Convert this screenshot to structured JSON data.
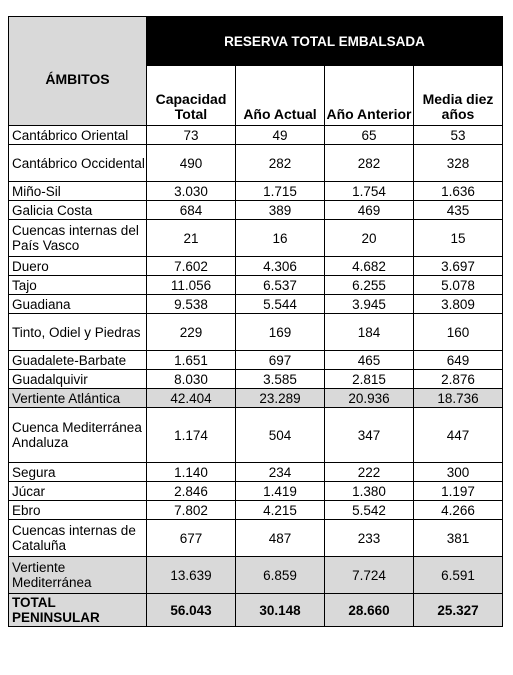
{
  "header": {
    "ambitos": "ÁMBITOS",
    "reserva": "RESERVA TOTAL EMBALSADA",
    "columns": [
      "Capacidad Total",
      "Año Actual",
      "Año Anterior",
      "Media diez años"
    ]
  },
  "rows": [
    {
      "name": "Cantábrico Oriental",
      "values": [
        "73",
        "49",
        "65",
        "53"
      ]
    },
    {
      "name": "Cantábrico Occidental",
      "values": [
        "490",
        "282",
        "282",
        "328"
      ]
    },
    {
      "name": "Miño-Sil",
      "values": [
        "3.030",
        "1.715",
        "1.754",
        "1.636"
      ]
    },
    {
      "name": "Galicia Costa",
      "values": [
        "684",
        "389",
        "469",
        "435"
      ]
    },
    {
      "name": "Cuencas internas del País Vasco",
      "values": [
        "21",
        "16",
        "20",
        "15"
      ]
    },
    {
      "name": "Duero",
      "values": [
        "7.602",
        "4.306",
        "4.682",
        "3.697"
      ]
    },
    {
      "name": "Tajo",
      "values": [
        "11.056",
        "6.537",
        "6.255",
        "5.078"
      ]
    },
    {
      "name": "Guadiana",
      "values": [
        "9.538",
        "5.544",
        "3.945",
        "3.809"
      ]
    },
    {
      "name": "Tinto, Odiel y Piedras",
      "values": [
        "229",
        "169",
        "184",
        "160"
      ]
    },
    {
      "name": "Guadalete-Barbate",
      "values": [
        "1.651",
        "697",
        "465",
        "649"
      ]
    },
    {
      "name": "Guadalquivir",
      "values": [
        "8.030",
        "3.585",
        "2.815",
        "2.876"
      ]
    },
    {
      "name": "Vertiente Atlántica",
      "values": [
        "42.404",
        "23.289",
        "20.936",
        "18.736"
      ],
      "subtotal": true
    },
    {
      "name": "Cuenca Mediterránea Andaluza",
      "values": [
        "1.174",
        "504",
        "347",
        "447"
      ]
    },
    {
      "name": "Segura",
      "values": [
        "1.140",
        "234",
        "222",
        "300"
      ]
    },
    {
      "name": "Júcar",
      "values": [
        "2.846",
        "1.419",
        "1.380",
        "1.197"
      ]
    },
    {
      "name": "Ebro",
      "values": [
        "7.802",
        "4.215",
        "5.542",
        "4.266"
      ]
    },
    {
      "name": "Cuencas internas de Cataluña",
      "values": [
        "677",
        "487",
        "233",
        "381"
      ]
    },
    {
      "name": "Vertiente Mediterránea",
      "values": [
        "13.639",
        "6.859",
        "7.724",
        "6.591"
      ],
      "subtotal": true
    }
  ],
  "total": {
    "name": "TOTAL PENINSULAR",
    "values": [
      "56.043",
      "30.148",
      "28.660",
      "25.327"
    ]
  }
}
